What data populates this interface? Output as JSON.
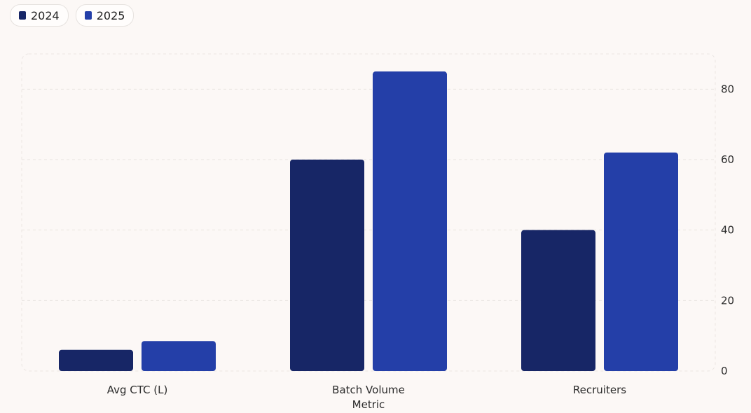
{
  "legend": [
    {
      "label": "2024",
      "color": "#172666"
    },
    {
      "label": "2025",
      "color": "#243fa8"
    }
  ],
  "chart_data": {
    "type": "bar",
    "categories": [
      "Avg CTC (L)",
      "Batch Volume",
      "Recruiters"
    ],
    "series": [
      {
        "name": "2024",
        "values": [
          6,
          60,
          40
        ],
        "color": "#172666"
      },
      {
        "name": "2025",
        "values": [
          8.5,
          85,
          62
        ],
        "color": "#243fa8"
      }
    ],
    "xlabel": "Metric",
    "ylabel": "",
    "ylim": [
      0,
      90
    ],
    "yticks": [
      0,
      20,
      40,
      60,
      80
    ],
    "y_axis_side": "right",
    "grid": true,
    "legend_position": "top-left"
  }
}
